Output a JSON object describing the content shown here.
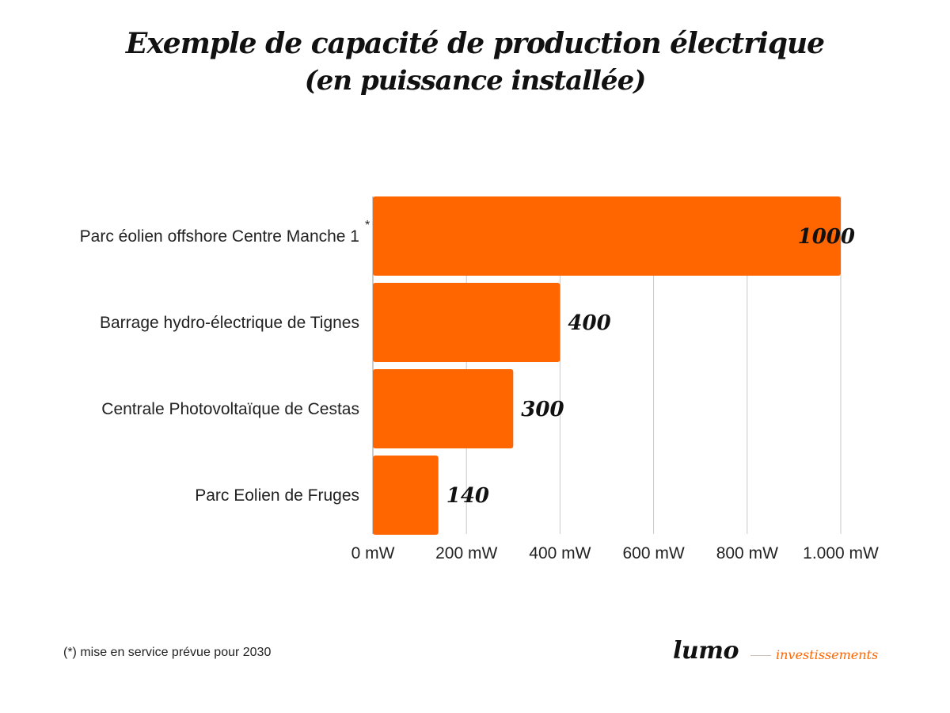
{
  "colors": {
    "bar": "#ff6600",
    "grid": "#c8c8c8",
    "text": "#222222"
  },
  "title": {
    "line1": "Exemple de capacité de production électrique",
    "line2": "(en puissance installée)"
  },
  "chart_data": {
    "type": "bar",
    "orientation": "horizontal",
    "categories": [
      "Parc éolien offshore Centre Manche 1",
      "Barrage hydro-électrique de Tignes",
      "Centrale Photovoltaïque de Cestas",
      "Parc Eolien de Fruges"
    ],
    "category_markers": [
      "*",
      "",
      "",
      ""
    ],
    "values": [
      1000,
      400,
      300,
      140
    ],
    "data_labels": [
      "1000",
      "400",
      "300",
      "140"
    ],
    "xlim": [
      0,
      1000
    ],
    "xticks": [
      0,
      200,
      400,
      600,
      800,
      1000
    ],
    "xtick_labels": [
      "0 mW",
      "200 mW",
      "400 mW",
      "600 mW",
      "800 mW",
      "1.000 mW"
    ],
    "grid": "vertical",
    "legend": "none"
  },
  "footnote": "(*) mise en service prévue pour 2030",
  "logo": {
    "word": "lumo",
    "sub": "investissements"
  }
}
